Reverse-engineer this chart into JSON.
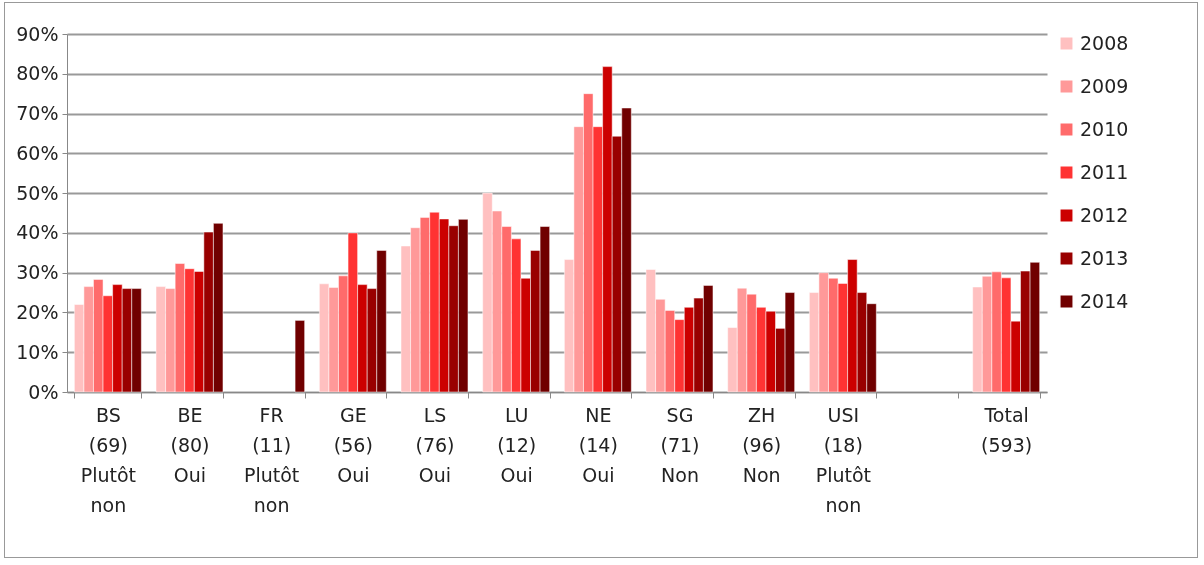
{
  "chart_data": {
    "type": "bar",
    "categories": [
      "BS\n(69)\n\nPlutôt\nnon",
      "BE\n(80)\n\nOui",
      "FR\n(11)\n\nPlutôt\nnon",
      "GE\n(56)\n\nOui",
      "LS\n(76)\n\nOui",
      "LU\n(12)\n\nOui",
      "NE\n(14)\n\nOui",
      "SG\n(71)\n\nNon",
      "ZH\n(96)\n\nNon",
      "USI\n(18)\n\nPlutôt\nnon",
      null,
      "Total\n(593)"
    ],
    "series": [
      {
        "name": "2008",
        "color": "#ffc0c0",
        "values": [
          22,
          26.5,
          null,
          27.2,
          36.7,
          50,
          33.3,
          30.8,
          16.2,
          25,
          null,
          26.4
        ]
      },
      {
        "name": "2009",
        "color": "#ff9999",
        "values": [
          26.5,
          26,
          null,
          26.3,
          41.3,
          45.5,
          66.7,
          23.3,
          26.1,
          30,
          null,
          29.1
        ]
      },
      {
        "name": "2010",
        "color": "#ff6b6b",
        "values": [
          28.3,
          32.3,
          null,
          29.2,
          43.9,
          41.6,
          75,
          20.5,
          24.6,
          28.6,
          null,
          30.2
        ]
      },
      {
        "name": "2011",
        "color": "#ff3333",
        "values": [
          24.2,
          31,
          null,
          40,
          45.2,
          38.5,
          66.7,
          18.2,
          21.3,
          27.3,
          null,
          28.7
        ]
      },
      {
        "name": "2012",
        "color": "#cc0000",
        "values": [
          27,
          30.3,
          null,
          27,
          43.5,
          28.6,
          81.8,
          21.3,
          20.3,
          33.3,
          null,
          17.8
        ]
      },
      {
        "name": "2013",
        "color": "#990000",
        "values": [
          26,
          40.2,
          null,
          26,
          41.8,
          35.6,
          64.3,
          23.6,
          16,
          25,
          null,
          30.4
        ]
      },
      {
        "name": "2014",
        "color": "#700000",
        "values": [
          26,
          42.4,
          18,
          35.6,
          43.4,
          41.6,
          71.4,
          26.8,
          25,
          22.2,
          null,
          32.6
        ]
      }
    ],
    "ylim": [
      0,
      90
    ],
    "yticks": [
      {
        "value": 0,
        "label": "0%"
      },
      {
        "value": 10,
        "label": "10%"
      },
      {
        "value": 20,
        "label": "20%"
      },
      {
        "value": 30,
        "label": "30%"
      },
      {
        "value": 40,
        "label": "40%"
      },
      {
        "value": 50,
        "label": "50%"
      },
      {
        "value": 60,
        "label": "60%"
      },
      {
        "value": 70,
        "label": "70%"
      },
      {
        "value": 80,
        "label": "80%"
      },
      {
        "value": 90,
        "label": "90%"
      }
    ],
    "grid": "y",
    "legend": "right"
  }
}
